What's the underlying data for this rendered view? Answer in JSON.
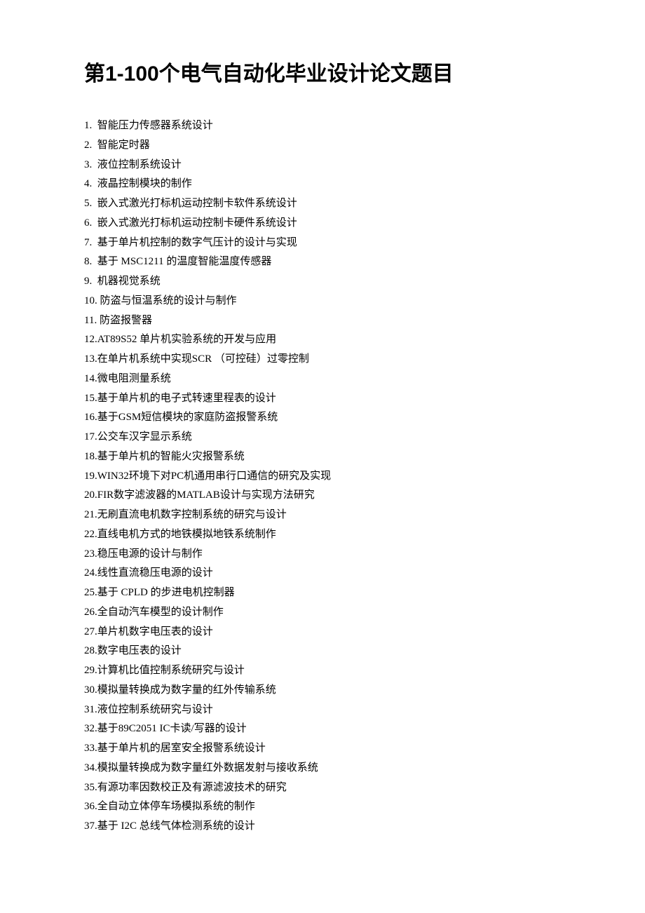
{
  "title": "第1-100个电气自动化毕业设计论文题目",
  "title_fontsize": 30,
  "item_fontsize": 15,
  "text_color": "#000000",
  "background_color": "#ffffff",
  "line_height": 1.85,
  "items": [
    {
      "num": "1. ",
      "text": " 智能压力传感器系统设计"
    },
    {
      "num": "2. ",
      "text": " 智能定时器"
    },
    {
      "num": "3. ",
      "text": " 液位控制系统设计"
    },
    {
      "num": "4. ",
      "text": " 液晶控制模块的制作"
    },
    {
      "num": "5. ",
      "text": " 嵌入式激光打标机运动控制卡软件系统设计"
    },
    {
      "num": "6. ",
      "text": " 嵌入式激光打标机运动控制卡硬件系统设计"
    },
    {
      "num": "7. ",
      "text": " 基于单片机控制的数字气压计的设计与实现"
    },
    {
      "num": "8. ",
      "text": " 基于 MSC1211 的温度智能温度传感器"
    },
    {
      "num": "9. ",
      "text": " 机器视觉系统"
    },
    {
      "num": "10.",
      "text": " 防盗与恒温系统的设计与制作"
    },
    {
      "num": "11.",
      "text": " 防盗报警器"
    },
    {
      "num": "12.",
      "text": "AT89S52 单片机实验系统的开发与应用"
    },
    {
      "num": "13.",
      "text": "在单片机系统中实现SCR （可控硅）过零控制"
    },
    {
      "num": "14.",
      "text": "微电阻测量系统"
    },
    {
      "num": "15.",
      "text": "基于单片机的电子式转速里程表的设计"
    },
    {
      "num": "16.",
      "text": "基于GSM短信模块的家庭防盗报警系统"
    },
    {
      "num": "17.",
      "text": "公交车汉字显示系统"
    },
    {
      "num": "18.",
      "text": "基于单片机的智能火灾报警系统"
    },
    {
      "num": "19.",
      "text": "WIN32环境下对PC机通用串行口通信的研究及实现"
    },
    {
      "num": "20.",
      "text": "FIR数字滤波器的MATLAB设计与实现方法研究"
    },
    {
      "num": "21.",
      "text": "无刷直流电机数字控制系统的研究与设计"
    },
    {
      "num": "22.",
      "text": "直线电机方式的地铁模拟地铁系统制作"
    },
    {
      "num": "23.",
      "text": "稳压电源的设计与制作"
    },
    {
      "num": "24.",
      "text": "线性直流稳压电源的设计"
    },
    {
      "num": "25.",
      "text": "基于 CPLD 的步进电机控制器"
    },
    {
      "num": "26.",
      "text": "全自动汽车模型的设计制作"
    },
    {
      "num": "27.",
      "text": "单片机数字电压表的设计"
    },
    {
      "num": "28.",
      "text": "数字电压表的设计"
    },
    {
      "num": "29.",
      "text": "计算机比值控制系统研究与设计"
    },
    {
      "num": "30.",
      "text": "模拟量转换成为数字量的红外传输系统"
    },
    {
      "num": "31.",
      "text": "液位控制系统研究与设计"
    },
    {
      "num": "32.",
      "text": "基于89C2051 IC卡读/写器的设计"
    },
    {
      "num": "33.",
      "text": "基于单片机的居室安全报警系统设计"
    },
    {
      "num": "34.",
      "text": "模拟量转换成为数字量红外数据发射与接收系统"
    },
    {
      "num": "35.",
      "text": "有源功率因数校正及有源滤波技术的研究"
    },
    {
      "num": "36.",
      "text": "全自动立体停车场模拟系统的制作"
    },
    {
      "num": "37.",
      "text": "基于 I2C 总线气体检测系统的设计"
    }
  ]
}
